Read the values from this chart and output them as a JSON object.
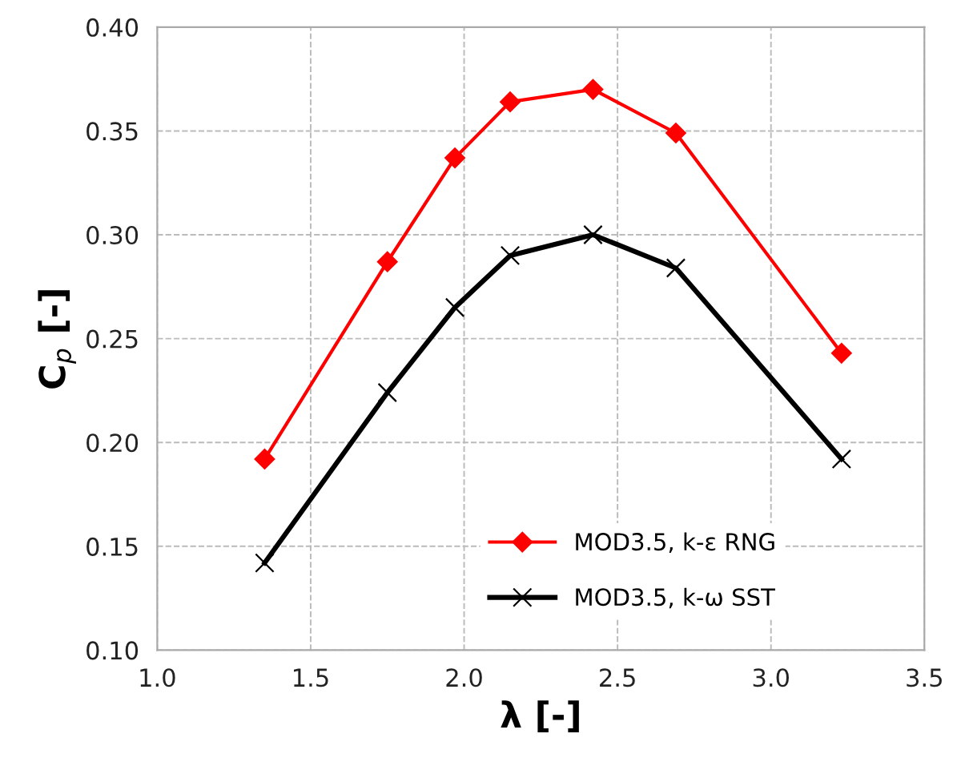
{
  "chart_data": {
    "type": "line",
    "x": [
      1.35,
      1.75,
      1.97,
      2.15,
      2.42,
      2.69,
      3.23
    ],
    "series": [
      {
        "name": "MOD3.5, k-ε RNG",
        "color": "#ff0000",
        "marker": "diamond",
        "values": [
          0.192,
          0.287,
          0.337,
          0.364,
          0.37,
          0.349,
          0.243
        ]
      },
      {
        "name": "MOD3.5, k-ω SST",
        "color": "#000000",
        "marker": "cross",
        "values": [
          0.142,
          0.224,
          0.265,
          0.29,
          0.3,
          0.284,
          0.192
        ]
      }
    ],
    "xlabel": "λ [-]",
    "ylabel": "C$_{p}$ [-]",
    "xlim": [
      1.0,
      3.5
    ],
    "xticks": [
      {
        "value": 1.0,
        "label": "1.0"
      },
      1.5,
      {
        "value": 2.0,
        "label": "2.0"
      },
      2.5,
      {
        "value": 3.0,
        "label": "3.0"
      },
      3.5
    ],
    "ylim": [
      0.1,
      0.4
    ],
    "yticks": [
      {
        "value": 0.1,
        "label": "0.10"
      },
      {
        "value": 0.15,
        "label": "0.15"
      },
      {
        "value": 0.2,
        "label": "0.20"
      },
      {
        "value": 0.25,
        "label": "0.25"
      },
      {
        "value": 0.3,
        "label": "0.30"
      },
      {
        "value": 0.35,
        "label": "0.35"
      },
      {
        "value": 0.4,
        "label": "0.40"
      }
    ],
    "grid": true,
    "legend": "bottom",
    "line_style": "solid"
  }
}
